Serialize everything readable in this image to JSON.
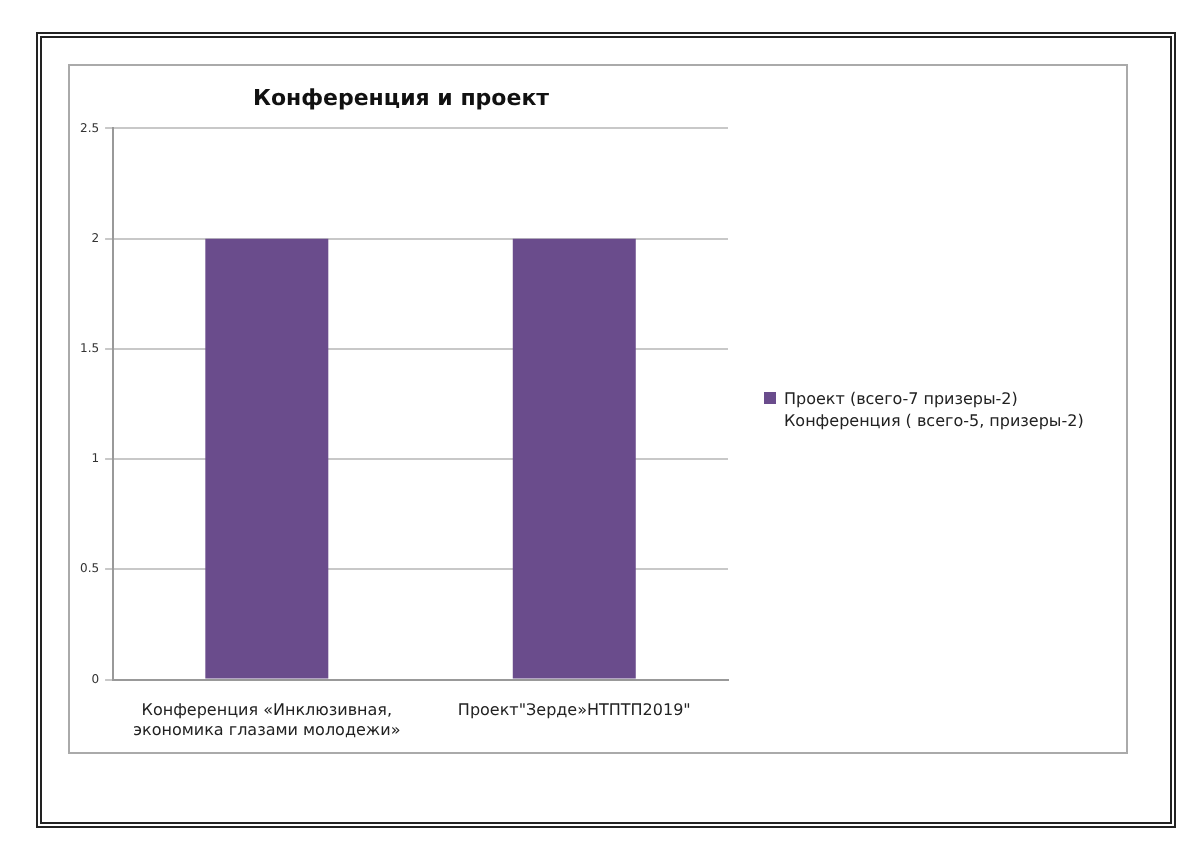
{
  "chart_data": {
    "type": "bar",
    "title": "Конференция и проект",
    "categories": [
      "Конференция «Инклюзивная, экономика глазами молодежи»",
      "Проект\"Зерде»НТПТП2019\""
    ],
    "series": [
      {
        "name": "Проект (всего-7 призеры-2) Конференция ( всего-5, призеры-2)",
        "color": "#6a4c8c",
        "values": [
          2,
          2
        ]
      }
    ],
    "ylim": [
      0,
      2.5
    ],
    "yticks": [
      0,
      0.5,
      1,
      1.5,
      2,
      2.5
    ],
    "grid": "y",
    "legend": "right"
  }
}
